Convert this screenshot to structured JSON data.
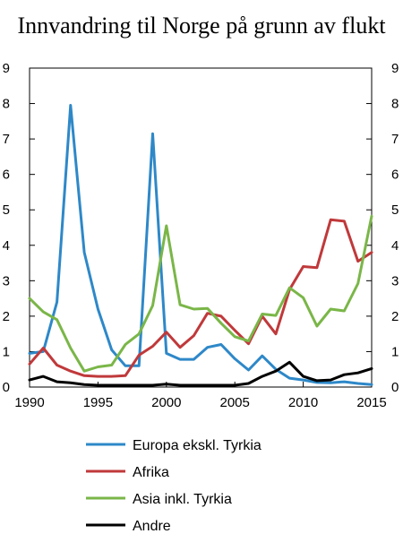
{
  "chart_data": {
    "type": "line",
    "title": "Innvandring til Norge på grunn av flukt",
    "xlabel": "",
    "ylabel": "",
    "xlim": [
      1990,
      2015
    ],
    "ylim": [
      0,
      9
    ],
    "grid": false,
    "legend_position": "bottom",
    "x_ticks": [
      "1990",
      "1995",
      "2000",
      "2005",
      "2010",
      "2015"
    ],
    "y_ticks": [
      "0",
      "1",
      "2",
      "3",
      "4",
      "5",
      "6",
      "7",
      "8",
      "9"
    ],
    "x": [
      1990,
      1991,
      1992,
      1993,
      1994,
      1995,
      1996,
      1997,
      1998,
      1999,
      2000,
      2001,
      2002,
      2003,
      2004,
      2005,
      2006,
      2007,
      2008,
      2009,
      2010,
      2011,
      2012,
      2013,
      2014,
      2015
    ],
    "series": [
      {
        "name": "Europa ekskl. Tyrkia",
        "color": "#2e88c8",
        "values": [
          0.95,
          1.0,
          2.4,
          7.95,
          3.8,
          2.2,
          1.05,
          0.6,
          0.6,
          7.15,
          0.95,
          0.78,
          0.78,
          1.12,
          1.2,
          0.8,
          0.48,
          0.88,
          0.5,
          0.25,
          0.2,
          0.13,
          0.12,
          0.15,
          0.1,
          0.07
        ]
      },
      {
        "name": "Afrika",
        "color": "#c0393b",
        "values": [
          0.65,
          1.1,
          0.62,
          0.45,
          0.32,
          0.3,
          0.3,
          0.32,
          0.9,
          1.15,
          1.55,
          1.12,
          1.45,
          2.08,
          2.0,
          1.6,
          1.22,
          2.0,
          1.5,
          2.75,
          3.4,
          3.37,
          4.72,
          4.68,
          3.55,
          3.8
        ]
      },
      {
        "name": "Asia inkl. Tyrkia",
        "color": "#7ab648",
        "values": [
          2.5,
          2.12,
          1.9,
          1.1,
          0.45,
          0.57,
          0.62,
          1.2,
          1.5,
          2.3,
          4.55,
          2.32,
          2.2,
          2.22,
          1.8,
          1.42,
          1.3,
          2.06,
          2.02,
          2.8,
          2.52,
          1.72,
          2.2,
          2.15,
          2.92,
          4.82
        ]
      },
      {
        "name": "Andre",
        "color": "#000000",
        "values": [
          0.2,
          0.3,
          0.15,
          0.12,
          0.07,
          0.05,
          0.05,
          0.05,
          0.05,
          0.05,
          0.08,
          0.05,
          0.05,
          0.05,
          0.05,
          0.05,
          0.1,
          0.3,
          0.45,
          0.7,
          0.3,
          0.18,
          0.2,
          0.35,
          0.4,
          0.52
        ]
      }
    ]
  }
}
